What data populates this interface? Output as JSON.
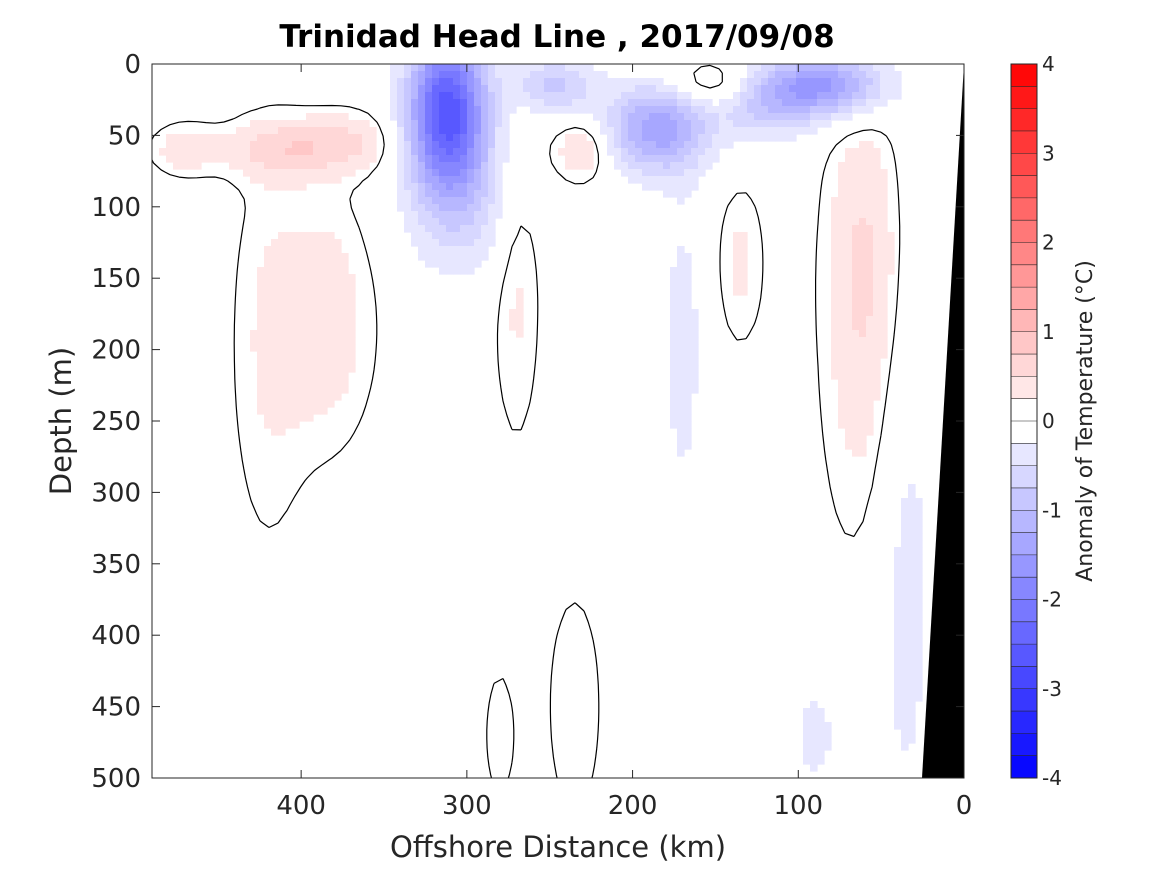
{
  "chart_data": {
    "type": "heatmap",
    "title": "Trinidad Head Line , 2017/09/08",
    "xlabel": "Offshore Distance (km)",
    "ylabel": "Depth (m)",
    "xlim": [
      490,
      0
    ],
    "ylim": [
      0,
      500
    ],
    "x_reversed": true,
    "y_reversed": true,
    "x_ticks": [
      400,
      300,
      200,
      100,
      0
    ],
    "y_ticks": [
      0,
      50,
      100,
      150,
      200,
      250,
      300,
      350,
      400,
      450,
      500
    ],
    "colorbar": {
      "label": "Anomaly of Temperature (°C)",
      "range": [
        -4,
        4
      ],
      "step": 0.25,
      "ticks": [
        4,
        3,
        2,
        1,
        0,
        -1,
        -2,
        -3,
        -4
      ],
      "neg_color": "#0000ff",
      "zero_color": "#ffffff",
      "pos_color": "#ff0000"
    },
    "anomaly_features": [
      {
        "x": 312,
        "depth": 30,
        "anomaly": -2.5,
        "sx": 16,
        "sd": 38
      },
      {
        "x": 305,
        "depth": 90,
        "anomaly": -0.7,
        "sx": 22,
        "sd": 40
      },
      {
        "x": 185,
        "depth": 45,
        "anomaly": -1.4,
        "sx": 22,
        "sd": 22
      },
      {
        "x": 248,
        "depth": 15,
        "anomaly": -0.8,
        "sx": 18,
        "sd": 14
      },
      {
        "x": 82,
        "depth": 15,
        "anomaly": -1.5,
        "sx": 24,
        "sd": 15
      },
      {
        "x": 120,
        "depth": 25,
        "anomaly": -0.9,
        "sx": 20,
        "sd": 18
      },
      {
        "x": 170,
        "depth": 200,
        "anomaly": -0.35,
        "sx": 10,
        "sd": 90
      },
      {
        "x": 35,
        "depth": 350,
        "anomaly": -0.35,
        "sx": 14,
        "sd": 160
      },
      {
        "x": 90,
        "depth": 470,
        "anomaly": -0.3,
        "sx": 14,
        "sd": 40
      },
      {
        "x": 410,
        "depth": 60,
        "anomaly": 0.6,
        "sx": 24,
        "sd": 14
      },
      {
        "x": 370,
        "depth": 55,
        "anomaly": 0.45,
        "sx": 20,
        "sd": 14
      },
      {
        "x": 470,
        "depth": 60,
        "anomaly": 0.4,
        "sx": 14,
        "sd": 12
      },
      {
        "x": 385,
        "depth": 180,
        "anomaly": 0.4,
        "sx": 20,
        "sd": 60
      },
      {
        "x": 420,
        "depth": 200,
        "anomaly": 0.25,
        "sx": 16,
        "sd": 100
      },
      {
        "x": 230,
        "depth": 60,
        "anomaly": 0.55,
        "sx": 12,
        "sd": 15
      },
      {
        "x": 270,
        "depth": 150,
        "anomaly": 0.3,
        "sx": 10,
        "sd": 80
      },
      {
        "x": 150,
        "depth": 15,
        "anomaly": 0.6,
        "sx": 22,
        "sd": 12
      },
      {
        "x": 60,
        "depth": 130,
        "anomaly": 0.5,
        "sx": 16,
        "sd": 70
      },
      {
        "x": 60,
        "depth": 250,
        "anomaly": 0.25,
        "sx": 18,
        "sd": 80
      },
      {
        "x": 135,
        "depth": 140,
        "anomaly": 0.3,
        "sx": 10,
        "sd": 40
      },
      {
        "x": 235,
        "depth": 450,
        "anomaly": 0.25,
        "sx": 12,
        "sd": 60
      },
      {
        "x": 280,
        "depth": 470,
        "anomaly": 0.2,
        "sx": 8,
        "sd": 40
      }
    ]
  }
}
